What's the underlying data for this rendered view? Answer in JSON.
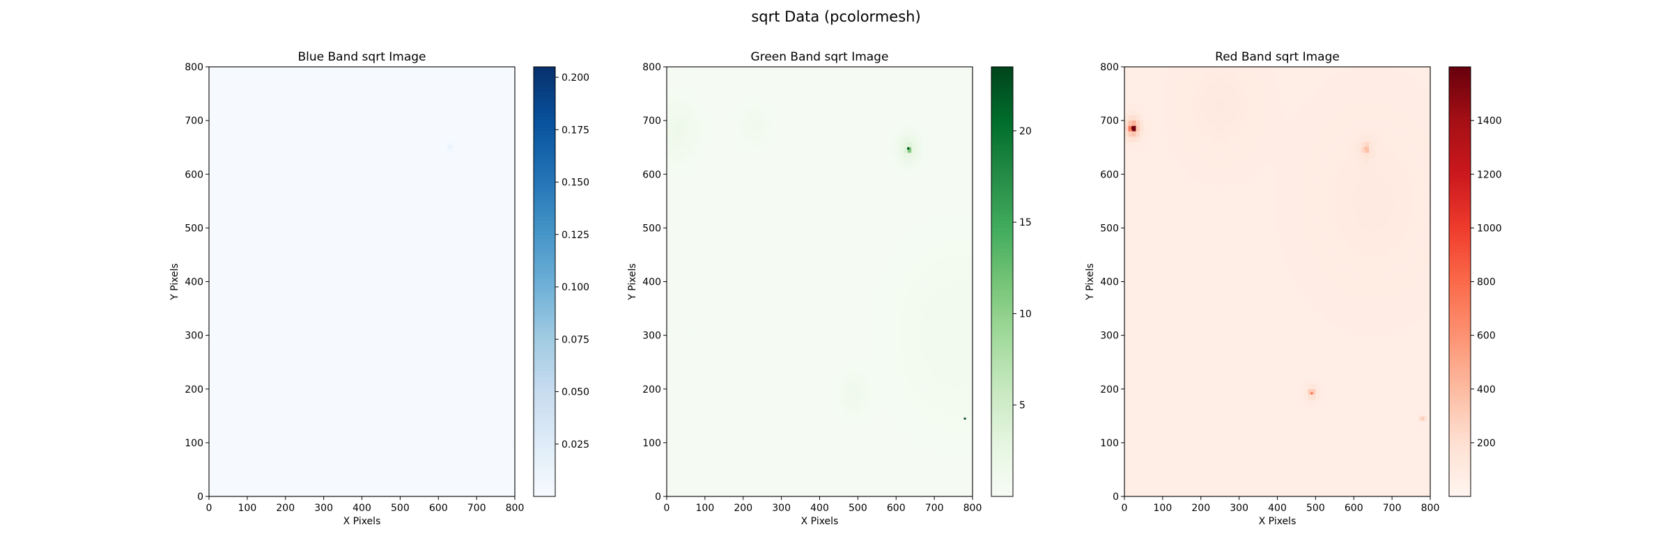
{
  "figure": {
    "suptitle": "sqrt Data (pcolormesh)"
  },
  "chart_data": [
    {
      "type": "heatmap",
      "title": "Blue Band sqrt Image",
      "xlabel": "X Pixels",
      "ylabel": "Y Pixels",
      "xlim": [
        0,
        800
      ],
      "ylim": [
        0,
        800
      ],
      "xticks": [
        0,
        100,
        200,
        300,
        400,
        500,
        600,
        700,
        800
      ],
      "yticks": [
        0,
        100,
        200,
        300,
        400,
        500,
        600,
        700,
        800
      ],
      "colormap": "Blues",
      "colors": [
        "#f7fbff",
        "#deebf7",
        "#c6dbef",
        "#9ecae1",
        "#6baed6",
        "#4292c6",
        "#2171b5",
        "#08519c",
        "#08306b"
      ],
      "colorbar": {
        "min": 0,
        "max": 0.205,
        "ticks": [
          0.025,
          0.05,
          0.075,
          0.1,
          0.125,
          0.15,
          0.175,
          0.2
        ],
        "tick_labels": [
          "0.025",
          "0.050",
          "0.075",
          "0.100",
          "0.125",
          "0.150",
          "0.175",
          "0.200"
        ]
      },
      "background_value": 0.001,
      "hotspots": [
        {
          "x": 630,
          "y": 650,
          "value": 0.012,
          "sigma": 5
        },
        {
          "x": 795,
          "y": 100,
          "value": 0.008,
          "sigma": 3
        }
      ]
    },
    {
      "type": "heatmap",
      "title": "Green Band sqrt Image",
      "xlabel": "X Pixels",
      "ylabel": "Y Pixels",
      "xlim": [
        0,
        800
      ],
      "ylim": [
        0,
        800
      ],
      "xticks": [
        0,
        100,
        200,
        300,
        400,
        500,
        600,
        700,
        800
      ],
      "yticks": [
        0,
        100,
        200,
        300,
        400,
        500,
        600,
        700,
        800
      ],
      "colormap": "Greens",
      "colors": [
        "#f7fcf5",
        "#e5f5e0",
        "#c7e9c0",
        "#a1d99b",
        "#74c476",
        "#41ab5d",
        "#238b45",
        "#006d2c",
        "#00441b"
      ],
      "colorbar": {
        "min": 0,
        "max": 23.5,
        "ticks": [
          5,
          10,
          15,
          20
        ],
        "tick_labels": [
          "5",
          "10",
          "15",
          "20"
        ]
      },
      "background_value": 0.3,
      "hotspots": [
        {
          "x": 632,
          "y": 648,
          "value": 22,
          "sigma": 3
        },
        {
          "x": 632,
          "y": 648,
          "value": 2.5,
          "sigma": 20
        },
        {
          "x": 780,
          "y": 145,
          "value": 23,
          "sigma": 1.5
        },
        {
          "x": 30,
          "y": 680,
          "value": 1.2,
          "sigma": 35
        },
        {
          "x": 230,
          "y": 690,
          "value": 0.8,
          "sigma": 25
        },
        {
          "x": 490,
          "y": 190,
          "value": 1.0,
          "sigma": 25
        },
        {
          "x": 760,
          "y": 300,
          "value": 0.6,
          "sigma": 120
        }
      ]
    },
    {
      "type": "heatmap",
      "title": "Red Band sqrt Image",
      "xlabel": "X Pixels",
      "ylabel": "Y Pixels",
      "xlim": [
        0,
        800
      ],
      "ylim": [
        0,
        800
      ],
      "xticks": [
        0,
        100,
        200,
        300,
        400,
        500,
        600,
        700,
        800
      ],
      "yticks": [
        0,
        100,
        200,
        300,
        400,
        500,
        600,
        700,
        800
      ],
      "colormap": "Reds",
      "colors": [
        "#fff5f0",
        "#fee0d2",
        "#fcbba1",
        "#fc9272",
        "#fb6a4a",
        "#ef3b2c",
        "#cb181d",
        "#a50f15",
        "#67000d"
      ],
      "colorbar": {
        "min": 0,
        "max": 1600,
        "ticks": [
          200,
          400,
          600,
          800,
          1000,
          1200,
          1400
        ],
        "tick_labels": [
          "200",
          "400",
          "600",
          "800",
          "1000",
          "1200",
          "1400"
        ]
      },
      "background_value": 70,
      "hotspots": [
        {
          "x": 22,
          "y": 686,
          "value": 1550,
          "sigma": 4
        },
        {
          "x": 22,
          "y": 686,
          "value": 350,
          "sigma": 14
        },
        {
          "x": 490,
          "y": 192,
          "value": 700,
          "sigma": 3
        },
        {
          "x": 490,
          "y": 192,
          "value": 150,
          "sigma": 10
        },
        {
          "x": 632,
          "y": 648,
          "value": 300,
          "sigma": 5
        },
        {
          "x": 632,
          "y": 648,
          "value": 80,
          "sigma": 15
        },
        {
          "x": 780,
          "y": 145,
          "value": 250,
          "sigma": 4
        },
        {
          "x": 250,
          "y": 730,
          "value": 40,
          "sigma": 60
        },
        {
          "x": 650,
          "y": 550,
          "value": 35,
          "sigma": 100
        }
      ]
    }
  ]
}
